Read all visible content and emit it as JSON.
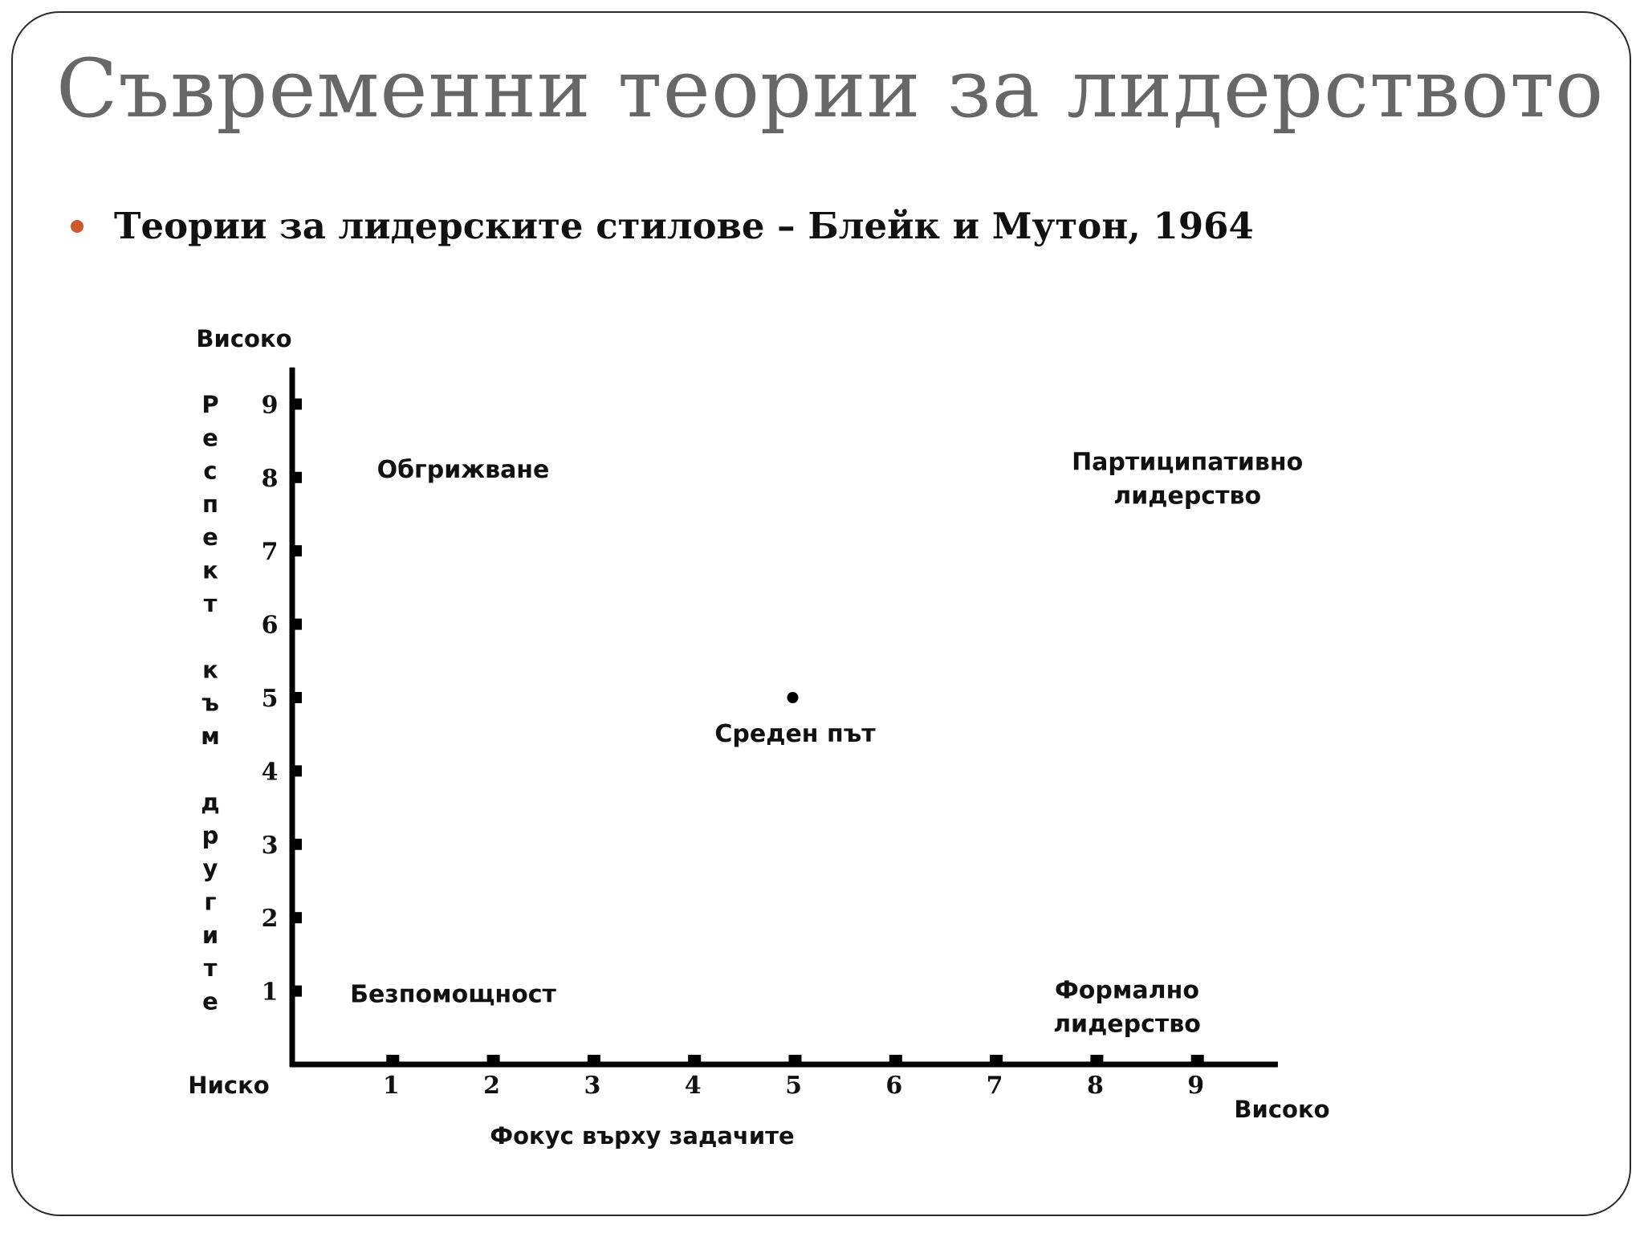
{
  "slide": {
    "title": "Съвременни теории за лидерството",
    "bullet": "Теории за лидерските стилове – Блейк и Мутон, 1964",
    "bullet_color": "#d0582d",
    "title_color": "#676767"
  },
  "chart_data": {
    "type": "scatter",
    "title": "",
    "xlabel": "Фокус върху задачите",
    "ylabel": "Респект към другите",
    "x_low_label": "Ниско",
    "x_high_label": "Високо",
    "y_high_label": "Високо",
    "xlim": [
      0,
      9.8
    ],
    "ylim": [
      0,
      9.5
    ],
    "x_ticks": [
      "1",
      "2",
      "3",
      "4",
      "5",
      "6",
      "7",
      "8",
      "9"
    ],
    "y_ticks": [
      "1",
      "2",
      "3",
      "4",
      "5",
      "6",
      "7",
      "8",
      "9"
    ],
    "points": [
      {
        "x": 5,
        "y": 5
      }
    ],
    "regions": [
      {
        "lines": [
          "Обгрижване"
        ],
        "x": 1.7,
        "y": 8
      },
      {
        "lines": [
          "Партиципативно",
          "лидерство"
        ],
        "x": 8.9,
        "y": 8.1
      },
      {
        "lines": [
          "Среден път"
        ],
        "x": 5,
        "y": 4.4
      },
      {
        "lines": [
          "Безпомощност"
        ],
        "x": 1.6,
        "y": 0.85
      },
      {
        "lines": [
          "Формално",
          "лидерство"
        ],
        "x": 8.3,
        "y": 0.9
      }
    ]
  }
}
